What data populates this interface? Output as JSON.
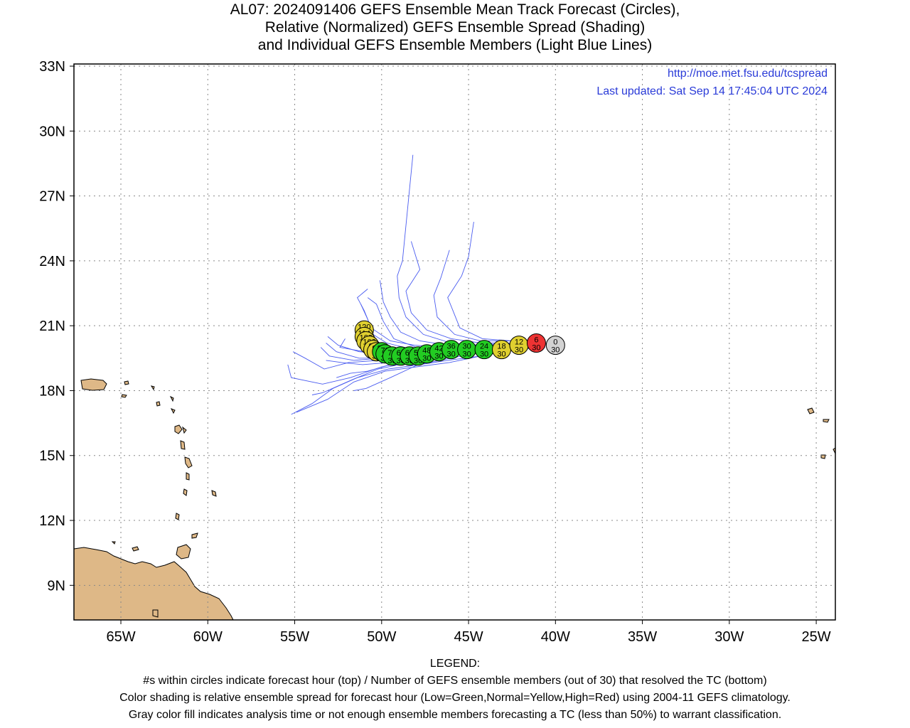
{
  "title": {
    "line1": "AL07: 2024091406 GEFS Ensemble Mean Track Forecast (Circles),",
    "line2": "Relative (Normalized) GEFS Ensemble Spread (Shading)",
    "line3": "and Individual GEFS Ensemble Members (Light Blue Lines)"
  },
  "credit": {
    "url": "http://moe.met.fsu.edu/tcspread",
    "updated": "Last updated: Sat Sep 14 17:45:04 UTC 2024"
  },
  "axes": {
    "lon_ticks": [
      {
        "lon": -65,
        "label": "65W"
      },
      {
        "lon": -60,
        "label": "60W"
      },
      {
        "lon": -55,
        "label": "55W"
      },
      {
        "lon": -50,
        "label": "50W"
      },
      {
        "lon": -45,
        "label": "45W"
      },
      {
        "lon": -40,
        "label": "40W"
      },
      {
        "lon": -35,
        "label": "35W"
      },
      {
        "lon": -30,
        "label": "30W"
      },
      {
        "lon": -25,
        "label": "25W"
      }
    ],
    "lat_ticks": [
      {
        "lat": 33,
        "label": "33N"
      },
      {
        "lat": 30,
        "label": "30N"
      },
      {
        "lat": 27,
        "label": "27N"
      },
      {
        "lat": 24,
        "label": "24N"
      },
      {
        "lat": 21,
        "label": "21N"
      },
      {
        "lat": 18,
        "label": "18N"
      },
      {
        "lat": 15,
        "label": "15N"
      },
      {
        "lat": 12,
        "label": "12N"
      },
      {
        "lat": 9,
        "label": "9N"
      }
    ],
    "lon_range": [
      -67.7,
      -23.9
    ],
    "lat_range": [
      7.4,
      33.1
    ],
    "grid": true
  },
  "colors": {
    "land": "#deb887",
    "member_track": "#4a5cf0",
    "credit": "#2a3bd8",
    "gray": "#d3d3d3",
    "green": "#22cc22",
    "yellow": "#e0d030",
    "red": "#ee3333"
  },
  "chart_data": {
    "type": "scatter",
    "x_label": "",
    "y_label": "",
    "mean_track": [
      {
        "hour": "0",
        "members": "30",
        "lon": -40.0,
        "lat": 20.1,
        "shade": "gray"
      },
      {
        "hour": "6",
        "members": "30",
        "lon": -41.1,
        "lat": 20.2,
        "shade": "red"
      },
      {
        "hour": "12",
        "members": "30",
        "lon": -42.1,
        "lat": 20.1,
        "shade": "yellow"
      },
      {
        "hour": "18",
        "members": "30",
        "lon": -43.1,
        "lat": 19.9,
        "shade": "yellow"
      },
      {
        "hour": "24",
        "members": "30",
        "lon": -44.1,
        "lat": 19.9,
        "shade": "green"
      },
      {
        "hour": "30",
        "members": "30",
        "lon": -45.1,
        "lat": 19.9,
        "shade": "green"
      },
      {
        "hour": "36",
        "members": "30",
        "lon": -46.0,
        "lat": 19.9,
        "shade": "green"
      },
      {
        "hour": "42",
        "members": "30",
        "lon": -46.7,
        "lat": 19.8,
        "shade": "green"
      },
      {
        "hour": "48",
        "members": "30",
        "lon": -47.4,
        "lat": 19.7,
        "shade": "green"
      },
      {
        "hour": "54",
        "members": "30",
        "lon": -47.9,
        "lat": 19.6,
        "shade": "green"
      },
      {
        "hour": "60",
        "members": "30",
        "lon": -48.4,
        "lat": 19.6,
        "shade": "green"
      },
      {
        "hour": "66",
        "members": "30",
        "lon": -48.9,
        "lat": 19.6,
        "shade": "green"
      },
      {
        "hour": "72",
        "members": "30",
        "lon": -49.4,
        "lat": 19.6,
        "shade": "green"
      },
      {
        "hour": "78",
        "members": "30",
        "lon": -49.8,
        "lat": 19.7,
        "shade": "green"
      },
      {
        "hour": "84",
        "members": "30",
        "lon": -50.0,
        "lat": 19.8,
        "shade": "green"
      },
      {
        "hour": "90",
        "members": "30",
        "lon": -50.3,
        "lat": 19.8,
        "shade": "yellow"
      },
      {
        "hour": "96",
        "members": "30",
        "lon": -50.5,
        "lat": 19.9,
        "shade": "yellow"
      },
      {
        "hour": "102",
        "members": "29",
        "lon": -50.7,
        "lat": 20.1,
        "shade": "yellow"
      },
      {
        "hour": "108",
        "members": "29",
        "lon": -50.9,
        "lat": 20.3,
        "shade": "yellow"
      },
      {
        "hour": "114",
        "members": "29",
        "lon": -51.0,
        "lat": 20.5,
        "shade": "yellow"
      },
      {
        "hour": "120",
        "members": "29",
        "lon": -51.0,
        "lat": 20.8,
        "shade": "yellow"
      }
    ],
    "member_tracks": [
      [
        [
          -40.6,
          20.0
        ],
        [
          -42.4,
          19.9
        ],
        [
          -44.3,
          19.6
        ],
        [
          -46.2,
          19.4
        ],
        [
          -47.8,
          19.2
        ],
        [
          -49.6,
          19.0
        ],
        [
          -51.4,
          18.6
        ],
        [
          -52.8,
          18.1
        ],
        [
          -54.0,
          17.4
        ],
        [
          -55.2,
          16.9
        ]
      ],
      [
        [
          -40.6,
          20.0
        ],
        [
          -42.4,
          19.9
        ],
        [
          -44.3,
          19.6
        ],
        [
          -46.1,
          19.3
        ],
        [
          -48.0,
          19.1
        ],
        [
          -49.8,
          18.9
        ],
        [
          -51.6,
          18.4
        ],
        [
          -53.1,
          17.6
        ],
        [
          -54.9,
          17.0
        ]
      ],
      [
        [
          -40.6,
          20.1
        ],
        [
          -42.5,
          20.0
        ],
        [
          -44.5,
          19.8
        ],
        [
          -46.5,
          19.6
        ],
        [
          -48.3,
          19.4
        ],
        [
          -50.0,
          19.1
        ],
        [
          -51.8,
          18.6
        ],
        [
          -53.4,
          18.3
        ],
        [
          -55.2,
          18.6
        ],
        [
          -55.4,
          19.2
        ]
      ],
      [
        [
          -40.6,
          20.1
        ],
        [
          -42.5,
          20.0
        ],
        [
          -44.4,
          19.8
        ],
        [
          -46.4,
          19.6
        ],
        [
          -48.4,
          19.3
        ],
        [
          -50.2,
          19.0
        ],
        [
          -51.7,
          18.5
        ],
        [
          -53.4,
          17.9
        ],
        [
          -54.0,
          17.8
        ]
      ],
      [
        [
          -40.6,
          20.1
        ],
        [
          -42.6,
          20.0
        ],
        [
          -44.6,
          19.9
        ],
        [
          -46.6,
          19.7
        ],
        [
          -48.6,
          19.5
        ],
        [
          -50.2,
          19.4
        ],
        [
          -51.9,
          19.3
        ],
        [
          -53.3,
          19.0
        ],
        [
          -54.4,
          19.5
        ],
        [
          -55.1,
          19.8
        ]
      ],
      [
        [
          -40.6,
          20.1
        ],
        [
          -42.4,
          20.0
        ],
        [
          -44.2,
          19.8
        ],
        [
          -46.0,
          19.5
        ],
        [
          -47.9,
          19.2
        ],
        [
          -49.5,
          18.6
        ],
        [
          -50.9,
          18.1
        ],
        [
          -51.6,
          18.0
        ]
      ],
      [
        [
          -40.6,
          20.2
        ],
        [
          -42.6,
          20.1
        ],
        [
          -44.5,
          19.9
        ],
        [
          -46.3,
          19.8
        ],
        [
          -48.3,
          19.7
        ],
        [
          -50.0,
          19.5
        ],
        [
          -51.6,
          19.4
        ],
        [
          -53.0,
          19.6
        ],
        [
          -53.5,
          20.0
        ]
      ],
      [
        [
          -40.6,
          20.2
        ],
        [
          -42.6,
          20.1
        ],
        [
          -44.6,
          19.9
        ],
        [
          -46.5,
          19.8
        ],
        [
          -48.3,
          19.8
        ],
        [
          -49.8,
          19.9
        ],
        [
          -51.0,
          19.8
        ],
        [
          -52.4,
          20.0
        ],
        [
          -52.1,
          20.4
        ]
      ],
      [
        [
          -40.6,
          20.2
        ],
        [
          -42.6,
          20.2
        ],
        [
          -44.5,
          20.0
        ],
        [
          -46.4,
          20.0
        ],
        [
          -48.1,
          20.1
        ],
        [
          -49.5,
          20.3
        ],
        [
          -50.6,
          20.9
        ],
        [
          -51.0,
          21.7
        ],
        [
          -51.4,
          22.3
        ],
        [
          -50.8,
          22.7
        ]
      ],
      [
        [
          -40.6,
          20.2
        ],
        [
          -42.5,
          20.1
        ],
        [
          -44.5,
          20.0
        ],
        [
          -46.3,
          19.9
        ],
        [
          -48.0,
          20.0
        ],
        [
          -49.3,
          20.4
        ],
        [
          -49.9,
          21.2
        ],
        [
          -50.3,
          22.0
        ],
        [
          -50.8,
          22.3
        ]
      ],
      [
        [
          -40.6,
          20.2
        ],
        [
          -42.4,
          20.2
        ],
        [
          -44.3,
          20.1
        ],
        [
          -46.0,
          20.2
        ],
        [
          -47.6,
          20.6
        ],
        [
          -48.6,
          21.4
        ],
        [
          -49.0,
          22.3
        ],
        [
          -49.1,
          23.3
        ],
        [
          -48.8,
          24.0
        ],
        [
          -48.2,
          28.9
        ]
      ],
      [
        [
          -40.6,
          20.2
        ],
        [
          -42.4,
          20.2
        ],
        [
          -44.3,
          20.2
        ],
        [
          -46.0,
          20.4
        ],
        [
          -47.4,
          20.8
        ],
        [
          -48.3,
          21.6
        ],
        [
          -48.6,
          22.6
        ],
        [
          -47.8,
          23.6
        ],
        [
          -48.3,
          24.9
        ]
      ],
      [
        [
          -40.6,
          20.2
        ],
        [
          -42.5,
          20.3
        ],
        [
          -44.3,
          20.3
        ],
        [
          -45.8,
          20.6
        ],
        [
          -46.8,
          21.4
        ],
        [
          -47.0,
          22.4
        ],
        [
          -46.6,
          23.2
        ],
        [
          -46.1,
          24.5
        ]
      ],
      [
        [
          -40.6,
          20.2
        ],
        [
          -42.5,
          20.3
        ],
        [
          -44.2,
          20.4
        ],
        [
          -45.5,
          20.9
        ],
        [
          -45.9,
          21.7
        ],
        [
          -46.2,
          22.3
        ],
        [
          -45.4,
          23.3
        ],
        [
          -45.0,
          24.2
        ],
        [
          -44.7,
          25.8
        ]
      ],
      [
        [
          -40.6,
          20.2
        ],
        [
          -42.5,
          20.2
        ],
        [
          -44.4,
          20.1
        ],
        [
          -46.2,
          20.1
        ],
        [
          -47.8,
          20.3
        ],
        [
          -48.9,
          20.7
        ],
        [
          -49.5,
          21.4
        ],
        [
          -49.9,
          22.1
        ],
        [
          -50.1,
          23.1
        ]
      ],
      [
        [
          -40.6,
          20.1
        ],
        [
          -42.4,
          20.0
        ],
        [
          -44.3,
          19.9
        ],
        [
          -46.2,
          19.7
        ],
        [
          -48.1,
          19.6
        ],
        [
          -49.7,
          19.5
        ],
        [
          -51.3,
          19.5
        ],
        [
          -52.6,
          19.8
        ],
        [
          -53.2,
          20.2
        ]
      ],
      [
        [
          -40.6,
          20.1
        ],
        [
          -42.5,
          20.1
        ],
        [
          -44.4,
          20.0
        ],
        [
          -46.3,
          19.9
        ],
        [
          -48.2,
          19.9
        ],
        [
          -49.7,
          20.2
        ],
        [
          -50.5,
          20.6
        ],
        [
          -50.8,
          21.3
        ],
        [
          -51.2,
          22.0
        ]
      ],
      [
        [
          -40.6,
          20.1
        ],
        [
          -42.5,
          20.1
        ],
        [
          -44.5,
          20.0
        ],
        [
          -46.4,
          19.9
        ],
        [
          -48.2,
          19.8
        ],
        [
          -49.9,
          19.7
        ],
        [
          -51.3,
          19.8
        ],
        [
          -52.5,
          20.1
        ],
        [
          -53.1,
          20.5
        ]
      ],
      [
        [
          -40.6,
          20.1
        ],
        [
          -42.4,
          20.0
        ],
        [
          -44.3,
          19.8
        ],
        [
          -46.2,
          19.6
        ],
        [
          -48.0,
          19.4
        ],
        [
          -49.5,
          19.2
        ],
        [
          -50.8,
          18.9
        ],
        [
          -51.8,
          18.8
        ],
        [
          -52.6,
          18.6
        ]
      ],
      [
        [
          -40.6,
          20.1
        ],
        [
          -42.5,
          20.0
        ],
        [
          -44.4,
          19.9
        ],
        [
          -46.3,
          19.7
        ],
        [
          -48.0,
          19.5
        ],
        [
          -49.6,
          19.3
        ],
        [
          -51.1,
          19.2
        ],
        [
          -52.3,
          19.3
        ],
        [
          -53.2,
          19.4
        ]
      ]
    ]
  }
}
